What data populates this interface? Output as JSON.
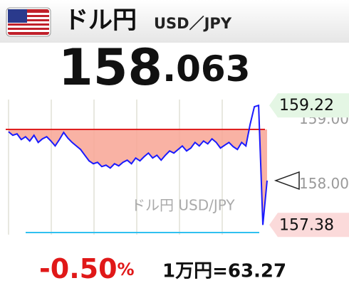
{
  "header": {
    "title": "ドル円",
    "pair": "USD／JPY"
  },
  "price": {
    "integer": "158",
    "decimal": ".063"
  },
  "chart_data": {
    "type": "line",
    "watermark": "ドル円 USD/JPY",
    "color": "#1a1aff",
    "reference": 158.85,
    "reference_color": "#e02020",
    "fill_color": "#f8a594",
    "values": [
      158.815,
      158.76,
      158.782,
      158.694,
      158.738,
      158.672,
      158.76,
      158.65,
      158.705,
      158.738,
      158.672,
      158.596,
      158.694,
      158.804,
      158.716,
      158.65,
      158.596,
      158.541,
      158.453,
      158.366,
      158.322,
      158.344,
      158.278,
      158.3,
      158.256,
      158.322,
      158.289,
      158.344,
      158.377,
      158.322,
      158.41,
      158.366,
      158.431,
      158.486,
      158.41,
      158.453,
      158.377,
      158.453,
      158.519,
      158.486,
      158.541,
      158.596,
      158.519,
      158.563,
      158.65,
      158.596,
      158.672,
      158.628,
      158.705,
      158.65,
      158.563,
      158.607,
      158.65,
      158.585,
      158.541,
      158.65,
      158.596,
      158.93,
      159.2,
      159.22,
      157.38,
      158.063
    ],
    "ylim": [
      157.23,
      159.31
    ],
    "yticks": [
      {
        "value": 159,
        "label": "159.00"
      },
      {
        "value": 158,
        "label": "158.00"
      }
    ],
    "high": 159.22,
    "low": 157.38,
    "grid": true
  },
  "footer": {
    "change": "-0.50",
    "change_unit": "%",
    "conversion": "1万円=63.27"
  }
}
